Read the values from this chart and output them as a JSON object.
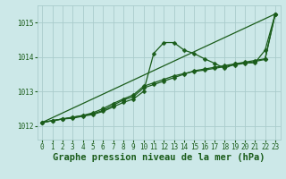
{
  "background_color": "#cce8e8",
  "grid_color": "#aacccc",
  "line_color": "#1a5c1a",
  "title": "Graphe pression niveau de la mer (hPa)",
  "xlim": [
    -0.5,
    23.5
  ],
  "ylim": [
    1011.6,
    1015.5
  ],
  "yticks": [
    1012,
    1013,
    1014,
    1015
  ],
  "xticks": [
    0,
    1,
    2,
    3,
    4,
    5,
    6,
    7,
    8,
    9,
    10,
    11,
    12,
    13,
    14,
    15,
    16,
    17,
    18,
    19,
    20,
    21,
    22,
    23
  ],
  "series": [
    {
      "x": [
        0,
        1,
        2,
        3,
        4,
        5,
        6,
        7,
        8,
        9,
        10,
        11,
        12,
        13,
        14,
        15,
        16,
        17,
        18,
        19,
        20,
        21,
        22,
        23
      ],
      "y": [
        1012.1,
        1012.15,
        1012.2,
        1012.25,
        1012.3,
        1012.35,
        1012.45,
        1012.6,
        1012.75,
        1012.85,
        1013.1,
        1013.2,
        1013.3,
        1013.4,
        1013.5,
        1013.6,
        1013.65,
        1013.7,
        1013.75,
        1013.8,
        1013.85,
        1013.9,
        1013.95,
        1015.25
      ],
      "marker": true,
      "linewidth": 0.9
    },
    {
      "x": [
        0,
        1,
        2,
        3,
        4,
        5,
        6,
        7,
        8,
        9,
        10,
        11,
        12,
        13,
        14,
        15,
        16,
        17,
        18,
        19,
        20,
        21,
        22,
        23
      ],
      "y": [
        1012.1,
        1012.15,
        1012.2,
        1012.25,
        1012.3,
        1012.38,
        1012.5,
        1012.65,
        1012.78,
        1012.9,
        1013.15,
        1013.25,
        1013.35,
        1013.45,
        1013.52,
        1013.58,
        1013.62,
        1013.67,
        1013.72,
        1013.77,
        1013.82,
        1013.87,
        1013.93,
        1015.25
      ],
      "marker": true,
      "linewidth": 0.9
    },
    {
      "x": [
        0,
        1,
        2,
        3,
        4,
        5,
        6,
        7,
        8,
        9,
        10,
        11,
        12,
        13,
        14,
        15,
        16,
        17,
        18,
        19,
        20,
        21,
        22,
        23
      ],
      "y": [
        1012.1,
        1012.15,
        1012.2,
        1012.22,
        1012.28,
        1012.33,
        1012.42,
        1012.55,
        1012.68,
        1012.78,
        1013.0,
        1014.1,
        1014.42,
        1014.42,
        1014.2,
        1014.1,
        1013.95,
        1013.82,
        1013.67,
        1013.8,
        1013.83,
        1013.83,
        1014.2,
        1015.25
      ],
      "marker": true,
      "linewidth": 0.9
    },
    {
      "x": [
        0,
        23
      ],
      "y": [
        1012.1,
        1015.25
      ],
      "marker": false,
      "linewidth": 0.9
    }
  ],
  "markersize": 2.5,
  "tick_fontsize": 5.5,
  "title_fontsize": 7.5
}
